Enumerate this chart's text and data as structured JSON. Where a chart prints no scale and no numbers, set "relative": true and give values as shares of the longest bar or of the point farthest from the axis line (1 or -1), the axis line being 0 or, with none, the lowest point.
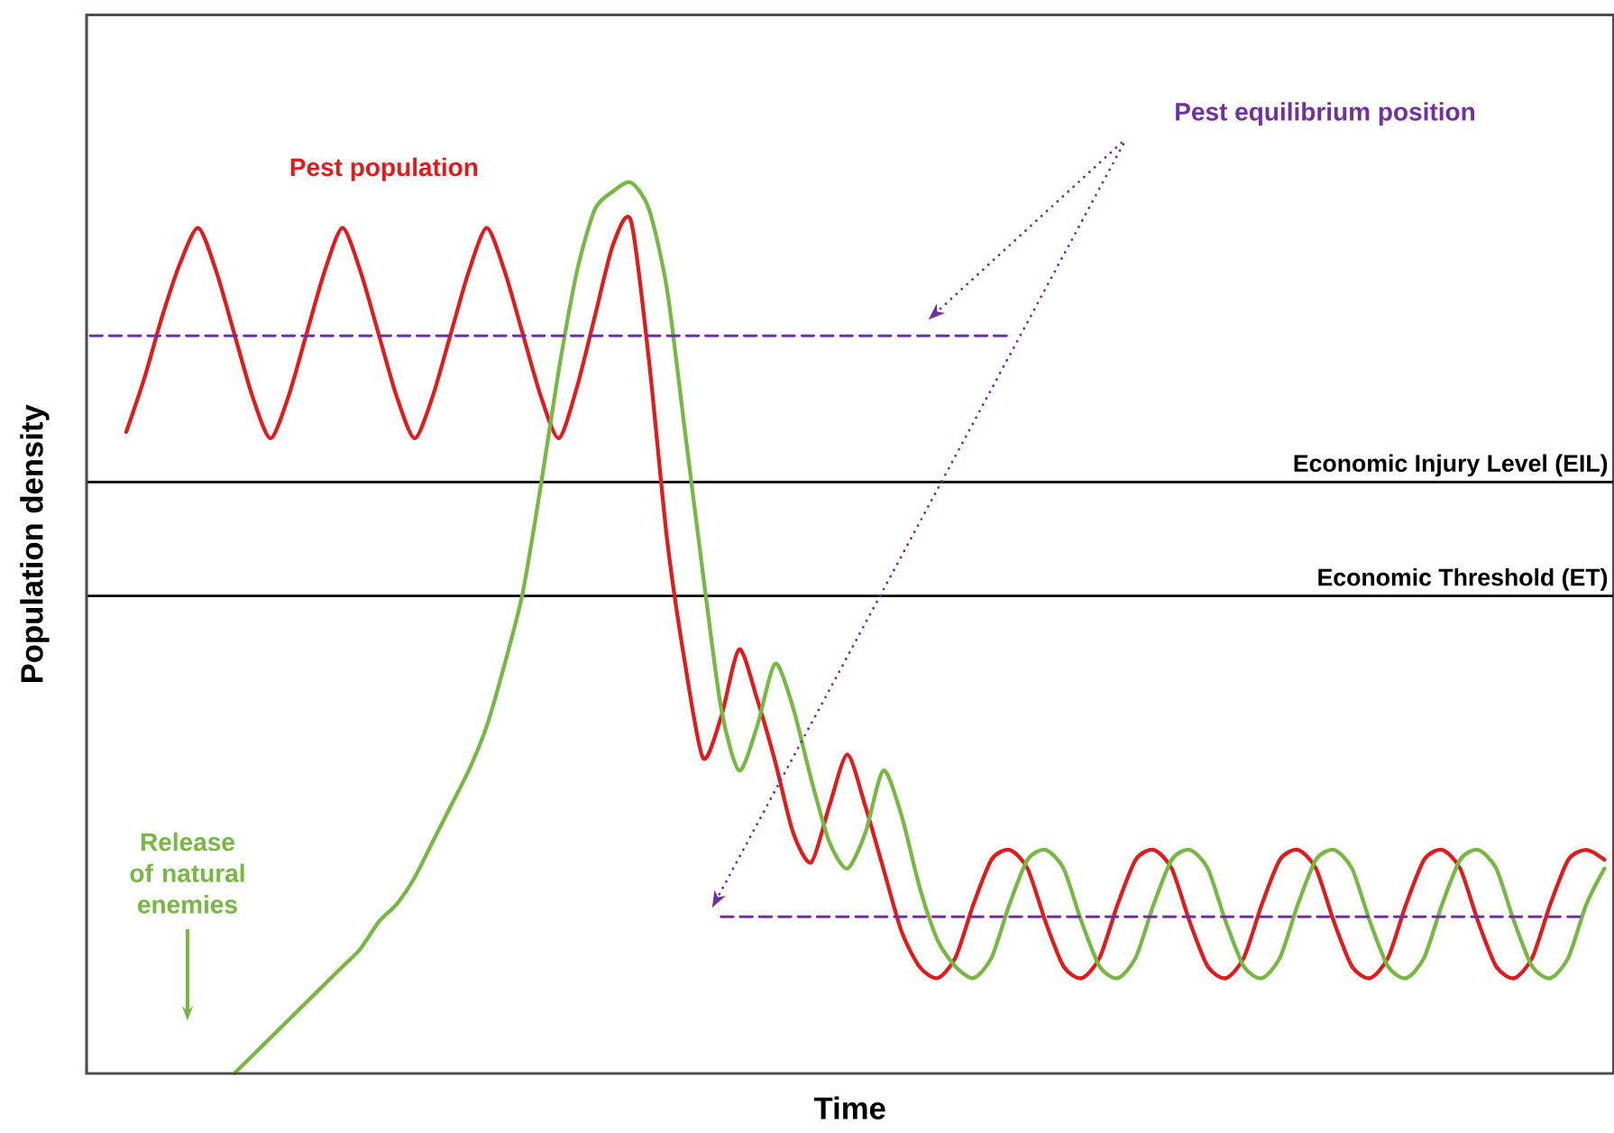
{
  "chart_data": {
    "type": "line",
    "relative": true,
    "xlabel": "Time",
    "ylabel": "Population density",
    "marker": "none",
    "line_style": "solid",
    "categories": [
      null,
      null,
      null,
      null,
      null,
      null,
      null,
      null,
      null,
      null,
      null,
      null,
      null,
      null,
      null,
      null,
      null,
      null,
      null,
      null,
      null,
      null,
      null,
      null,
      null,
      null,
      null,
      null,
      null,
      null,
      null,
      null,
      null,
      null,
      null,
      null,
      null,
      null,
      null,
      null,
      null,
      null,
      null,
      null,
      null,
      null,
      null,
      null,
      null,
      null,
      null,
      null,
      null,
      null,
      null,
      null,
      null,
      null,
      null,
      null,
      null,
      null,
      null,
      null,
      null,
      null,
      null,
      null,
      null,
      null,
      null,
      null,
      null,
      null,
      null,
      null,
      null,
      null,
      null,
      null,
      null,
      null,
      null,
      null,
      null
    ],
    "series": [
      {
        "name": "Pest population",
        "color": "#e31a1c",
        "values": [
          null,
          null,
          0.72,
          0.78,
          0.85,
          0.91,
          0.949,
          0.9,
          0.83,
          0.76,
          0.713,
          0.76,
          0.83,
          0.9,
          0.949,
          0.9,
          0.83,
          0.76,
          0.713,
          0.76,
          0.83,
          0.9,
          0.949,
          0.9,
          0.83,
          0.76,
          0.713,
          0.77,
          0.85,
          0.93,
          0.957,
          0.8,
          0.6,
          0.46,
          0.354,
          0.4,
          0.476,
          0.42,
          0.35,
          0.27,
          0.237,
          0.3,
          0.358,
          0.3,
          0.23,
          0.16,
          0.12,
          0.107,
          0.13,
          0.19,
          0.24,
          0.251,
          0.23,
          0.17,
          0.12,
          0.107,
          0.13,
          0.19,
          0.24,
          0.251,
          0.23,
          0.17,
          0.12,
          0.107,
          0.13,
          0.19,
          0.24,
          0.251,
          0.23,
          0.17,
          0.12,
          0.107,
          0.13,
          0.19,
          0.24,
          0.251,
          0.23,
          0.17,
          0.12,
          0.107,
          0.13,
          0.19,
          0.24,
          0.251,
          0.24
        ]
      },
      {
        "name": "Release of natural enemies",
        "color": "#77b843",
        "values": [
          null,
          null,
          null,
          null,
          null,
          null,
          null,
          null,
          0.0,
          0.02,
          0.04,
          0.06,
          0.08,
          0.1,
          0.12,
          0.14,
          0.17,
          0.19,
          0.22,
          0.26,
          0.3,
          0.34,
          0.39,
          0.46,
          0.54,
          0.66,
          0.79,
          0.9,
          0.97,
          0.99,
          1.0,
          0.97,
          0.88,
          0.72,
          0.56,
          0.41,
          0.34,
          0.39,
          0.46,
          0.41,
          0.33,
          0.26,
          0.23,
          0.27,
          0.34,
          0.29,
          0.21,
          0.15,
          0.12,
          0.107,
          0.13,
          0.19,
          0.24,
          0.251,
          0.23,
          0.17,
          0.12,
          0.107,
          0.13,
          0.19,
          0.24,
          0.251,
          0.23,
          0.17,
          0.12,
          0.107,
          0.13,
          0.19,
          0.24,
          0.251,
          0.23,
          0.17,
          0.12,
          0.107,
          0.13,
          0.19,
          0.24,
          0.251,
          0.23,
          0.17,
          0.12,
          0.107,
          0.13,
          0.19,
          0.23
        ]
      },
      {
        "color": "#7030a0",
        "line_style": "dashed",
        "values": [
          0.828,
          0.828,
          0.828,
          0.828,
          0.828,
          0.828,
          0.828,
          0.828,
          0.828,
          0.828,
          0.828,
          0.828,
          0.828,
          0.828,
          0.828,
          0.828,
          0.828,
          0.828,
          0.828,
          0.828,
          0.828,
          0.828,
          0.828,
          0.828,
          0.828,
          0.828,
          0.828,
          0.828,
          0.828,
          0.828,
          0.828,
          0.828,
          0.828,
          0.828,
          0.828,
          0.828,
          0.828,
          0.828,
          0.828,
          0.828,
          0.828,
          0.828,
          0.828,
          0.828,
          0.828,
          0.828,
          0.828,
          0.828,
          0.828,
          0.828,
          0.828,
          0.828,
          null,
          null,
          null,
          null,
          null,
          null,
          null,
          null,
          null,
          null,
          null,
          null,
          null,
          null,
          null,
          null,
          null,
          null,
          null,
          null,
          null,
          null,
          null,
          null,
          null,
          null,
          null,
          null,
          null,
          null,
          null,
          null,
          null
        ]
      },
      {
        "color": "#7030a0",
        "line_style": "dashed",
        "values": [
          null,
          null,
          null,
          null,
          null,
          null,
          null,
          null,
          null,
          null,
          null,
          null,
          null,
          null,
          null,
          null,
          null,
          null,
          null,
          null,
          null,
          null,
          null,
          null,
          null,
          null,
          null,
          null,
          null,
          null,
          null,
          null,
          null,
          null,
          null,
          0.176,
          0.176,
          0.176,
          0.176,
          0.176,
          0.176,
          0.176,
          0.176,
          0.176,
          0.176,
          0.176,
          0.176,
          0.176,
          0.176,
          0.176,
          0.176,
          0.176,
          0.176,
          0.176,
          0.176,
          0.176,
          0.176,
          0.176,
          0.176,
          0.176,
          0.176,
          0.176,
          0.176,
          0.176,
          0.176,
          0.176,
          0.176,
          0.176,
          0.176,
          0.176,
          0.176,
          0.176,
          0.176,
          0.176,
          0.176,
          0.176,
          0.176,
          0.176,
          0.176,
          0.176,
          0.176,
          0.176,
          0.176,
          0.176,
          null
        ]
      }
    ],
    "ref_lines": [
      {
        "axis": "y",
        "value": 0.664,
        "label": "Economic Injury Level (EIL)",
        "color": "#000000"
      },
      {
        "axis": "y",
        "value": 0.536,
        "label": "Economic Threshold (ET)",
        "color": "#000000"
      }
    ],
    "annotations": [
      "Pest equilibrium position"
    ]
  }
}
